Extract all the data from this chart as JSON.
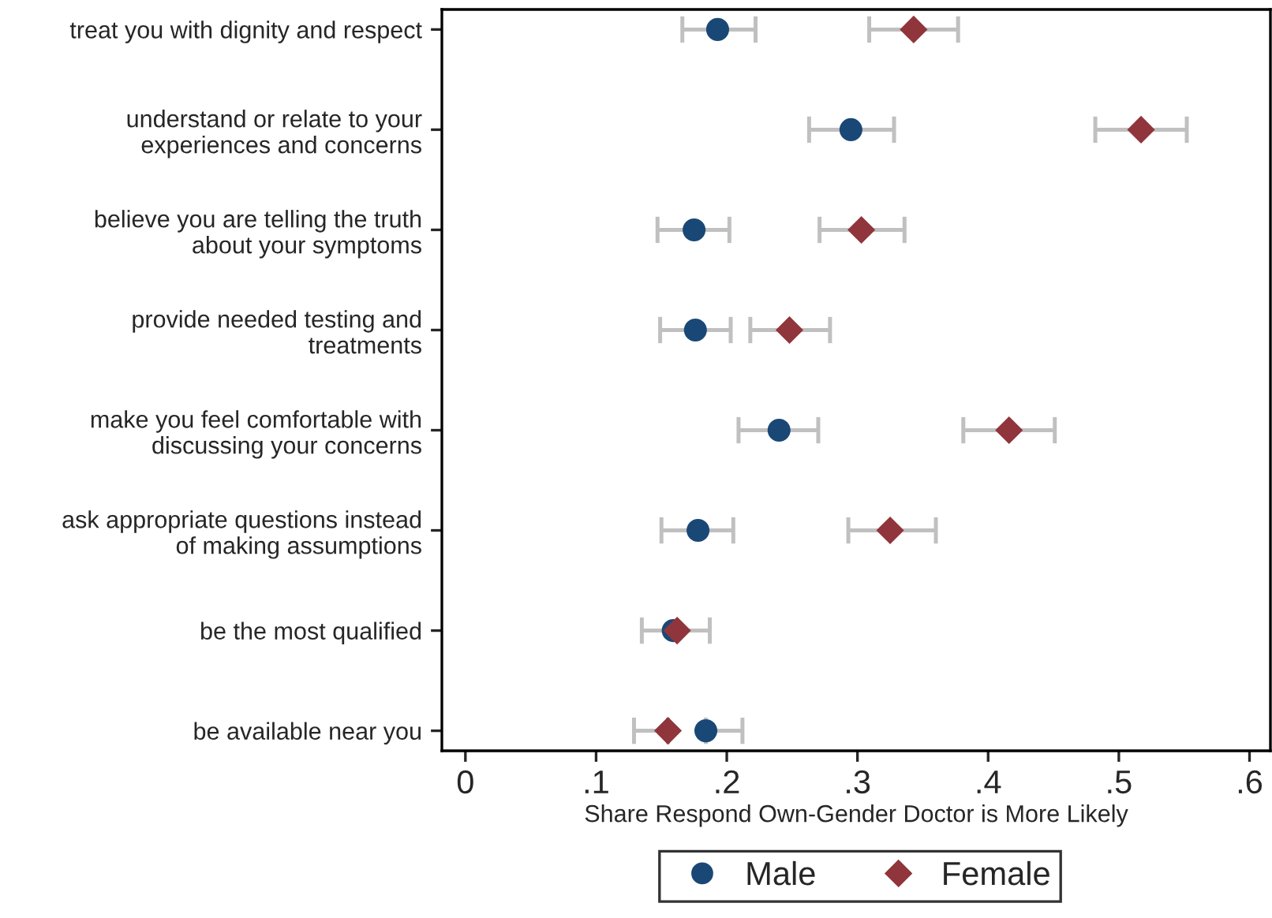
{
  "chart_data": {
    "type": "scatter",
    "xlabel": "Share Respond Own-Gender Doctor is More Likely",
    "categories": [
      "treat you with dignity and respect",
      "understand or relate to your\nexperiences and concerns",
      "believe you are telling the truth\nabout your symptoms",
      "provide needed testing and\ntreatments",
      "make you feel comfortable with\ndiscussing your concerns",
      "ask appropriate questions instead\nof making assumptions",
      "be the most qualified",
      "be available near you"
    ],
    "orientation": "horizontal",
    "xlim": [
      -0.018,
      0.616
    ],
    "xticks": [
      0,
      {
        "value": 0.1,
        "label": ".1"
      },
      {
        "value": 0.2,
        "label": ".2"
      },
      {
        "value": 0.3,
        "label": ".3"
      },
      {
        "value": 0.4,
        "label": ".4"
      },
      {
        "value": 0.5,
        "label": ".5"
      },
      {
        "value": 0.6,
        "label": ".6"
      }
    ],
    "series": [
      {
        "name": "Male",
        "color": "#1a4876",
        "marker": "circle",
        "values": [
          0.193,
          0.295,
          0.175,
          0.176,
          0.24,
          0.178,
          0.159,
          0.184
        ],
        "errors": [
          [
            0.166,
            0.222
          ],
          [
            0.263,
            0.328
          ],
          [
            0.147,
            0.202
          ],
          [
            0.149,
            0.203
          ],
          [
            0.209,
            0.27
          ],
          [
            0.15,
            0.205
          ],
          null,
          [
            0.184,
            0.212
          ]
        ]
      },
      {
        "name": "Female",
        "color": "#90353b",
        "marker": "diamond",
        "values": [
          0.343,
          0.517,
          0.303,
          0.248,
          0.416,
          0.325,
          0.162,
          0.155
        ],
        "errors": [
          [
            0.309,
            0.377
          ],
          [
            0.482,
            0.552
          ],
          [
            0.271,
            0.336
          ],
          [
            0.218,
            0.279
          ],
          [
            0.381,
            0.451
          ],
          [
            0.293,
            0.36
          ],
          [
            0.135,
            0.187
          ],
          [
            0.129,
            0.155
          ]
        ]
      }
    ],
    "grid": false,
    "legend": "bottom"
  }
}
